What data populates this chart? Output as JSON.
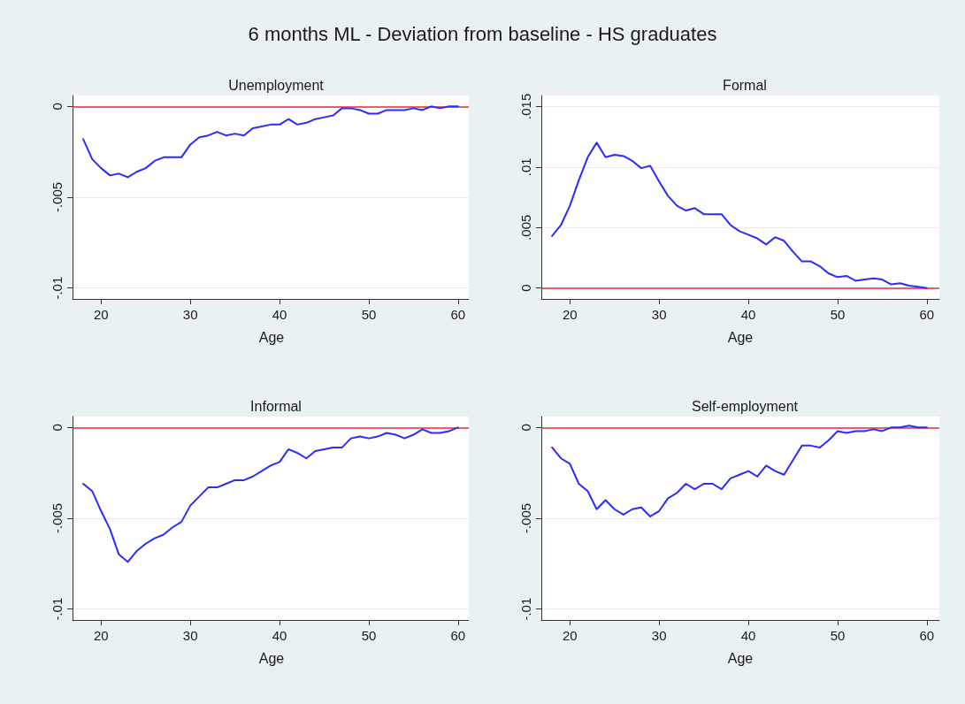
{
  "chart_data": [
    {
      "type": "other",
      "title": "6 months ML - Deviation from baseline - HS graduates"
    },
    {
      "type": "line",
      "title": "Unemployment",
      "xlabel": "Age",
      "x": [
        18,
        19,
        20,
        21,
        22,
        23,
        24,
        25,
        26,
        27,
        28,
        29,
        30,
        31,
        32,
        33,
        34,
        35,
        36,
        37,
        38,
        39,
        40,
        41,
        42,
        43,
        44,
        45,
        46,
        47,
        48,
        49,
        50,
        51,
        52,
        53,
        54,
        55,
        56,
        57,
        58,
        59,
        60
      ],
      "series": [
        {
          "color": "#2b2bff",
          "values": [
            -0.0018,
            -0.0029,
            -0.0034,
            -0.0038,
            -0.0037,
            -0.0039,
            -0.0036,
            -0.0034,
            -0.003,
            -0.0028,
            -0.0028,
            -0.0028,
            -0.0021,
            -0.0017,
            -0.0016,
            -0.0014,
            -0.0016,
            -0.0015,
            -0.0016,
            -0.0012,
            -0.0011,
            -0.001,
            -0.001,
            -0.0007,
            -0.001,
            -0.0009,
            -0.0007,
            -0.0006,
            -0.0005,
            -0.0001,
            -0.0001,
            -0.0002,
            -0.0004,
            -0.0004,
            -0.0002,
            -0.0002,
            -0.0002,
            -0.0001,
            -0.0002,
            0,
            -0.0001,
            0,
            0
          ]
        }
      ],
      "xlim": [
        16.8,
        61.4
      ],
      "xticks": [
        20,
        30,
        40,
        50,
        60
      ],
      "ylim": [
        -0.0106,
        0.0006
      ],
      "yticks": [
        {
          "value": -0.01,
          "label": "-.01"
        },
        {
          "value": -0.005,
          "label": "-.005"
        },
        {
          "value": 0,
          "label": "0"
        }
      ],
      "ref_lines": [
        {
          "axis": "y",
          "value": 0,
          "color": "#e0303a"
        }
      ],
      "grid": "y",
      "marker": "none",
      "line_style": "solid"
    },
    {
      "type": "line",
      "title": "Formal",
      "xlabel": "Age",
      "x": [
        18,
        19,
        20,
        21,
        22,
        23,
        24,
        25,
        26,
        27,
        28,
        29,
        30,
        31,
        32,
        33,
        34,
        35,
        36,
        37,
        38,
        39,
        40,
        41,
        42,
        43,
        44,
        45,
        46,
        47,
        48,
        49,
        50,
        51,
        52,
        53,
        54,
        55,
        56,
        57,
        58,
        59,
        60
      ],
      "series": [
        {
          "color": "#2b2bff",
          "values": [
            0.0043,
            0.0052,
            0.0068,
            0.0089,
            0.0108,
            0.012,
            0.0108,
            0.011,
            0.0109,
            0.0105,
            0.0099,
            0.0101,
            0.0088,
            0.0076,
            0.0068,
            0.0064,
            0.0066,
            0.0061,
            0.0061,
            0.0061,
            0.0052,
            0.0047,
            0.0044,
            0.0041,
            0.0036,
            0.0042,
            0.0039,
            0.003,
            0.0022,
            0.0022,
            0.0018,
            0.0012,
            0.0009,
            0.001,
            0.0006,
            0.0007,
            0.0008,
            0.0007,
            0.0003,
            0.0004,
            0.0002,
            0.0001,
            0
          ]
        }
      ],
      "xlim": [
        16.8,
        61.4
      ],
      "xticks": [
        20,
        30,
        40,
        50,
        60
      ],
      "ylim": [
        -0.0009,
        0.0159
      ],
      "yticks": [
        {
          "value": 0,
          "label": "0"
        },
        {
          "value": 0.005,
          "label": ".005"
        },
        {
          "value": 0.01,
          "label": ".01"
        },
        {
          "value": 0.015,
          "label": ".015"
        }
      ],
      "ref_lines": [
        {
          "axis": "y",
          "value": 0,
          "color": "#e0303a"
        }
      ],
      "grid": "y",
      "marker": "none",
      "line_style": "solid"
    },
    {
      "type": "line",
      "title": "Informal",
      "xlabel": "Age",
      "x": [
        18,
        19,
        20,
        21,
        22,
        23,
        24,
        25,
        26,
        27,
        28,
        29,
        30,
        31,
        32,
        33,
        34,
        35,
        36,
        37,
        38,
        39,
        40,
        41,
        42,
        43,
        44,
        45,
        46,
        47,
        48,
        49,
        50,
        51,
        52,
        53,
        54,
        55,
        56,
        57,
        58,
        59,
        60
      ],
      "series": [
        {
          "color": "#2b2bff",
          "values": [
            -0.0031,
            -0.0035,
            -0.0046,
            -0.0056,
            -0.007,
            -0.0074,
            -0.0068,
            -0.0064,
            -0.0061,
            -0.0059,
            -0.0055,
            -0.0052,
            -0.0043,
            -0.0038,
            -0.0033,
            -0.0033,
            -0.0031,
            -0.0029,
            -0.0029,
            -0.0027,
            -0.0024,
            -0.0021,
            -0.0019,
            -0.0012,
            -0.0014,
            -0.0017,
            -0.0013,
            -0.0012,
            -0.0011,
            -0.0011,
            -0.0006,
            -0.0005,
            -0.0006,
            -0.0005,
            -0.0003,
            -0.0004,
            -0.0006,
            -0.0004,
            -0.0001,
            -0.0003,
            -0.0003,
            -0.0002,
            0
          ]
        }
      ],
      "xlim": [
        16.8,
        61.4
      ],
      "xticks": [
        20,
        30,
        40,
        50,
        60
      ],
      "ylim": [
        -0.0106,
        0.0006
      ],
      "yticks": [
        {
          "value": -0.01,
          "label": "-.01"
        },
        {
          "value": -0.005,
          "label": "-.005"
        },
        {
          "value": 0,
          "label": "0"
        }
      ],
      "ref_lines": [
        {
          "axis": "y",
          "value": 0,
          "color": "#e0303a"
        }
      ],
      "grid": "y",
      "marker": "none",
      "line_style": "solid"
    },
    {
      "type": "line",
      "title": "Self-employment",
      "xlabel": "Age",
      "x": [
        18,
        19,
        20,
        21,
        22,
        23,
        24,
        25,
        26,
        27,
        28,
        29,
        30,
        31,
        32,
        33,
        34,
        35,
        36,
        37,
        38,
        39,
        40,
        41,
        42,
        43,
        44,
        45,
        46,
        47,
        48,
        49,
        50,
        51,
        52,
        53,
        54,
        55,
        56,
        57,
        58,
        59,
        60
      ],
      "series": [
        {
          "color": "#2b2bff",
          "values": [
            -0.0011,
            -0.0017,
            -0.002,
            -0.0031,
            -0.0035,
            -0.0045,
            -0.004,
            -0.0045,
            -0.0048,
            -0.0045,
            -0.0044,
            -0.0049,
            -0.0046,
            -0.0039,
            -0.0036,
            -0.0031,
            -0.0034,
            -0.0031,
            -0.0031,
            -0.0034,
            -0.0028,
            -0.0026,
            -0.0024,
            -0.0027,
            -0.0021,
            -0.0024,
            -0.0026,
            -0.0018,
            -0.001,
            -0.001,
            -0.0011,
            -0.0007,
            -0.0002,
            -0.0003,
            -0.0002,
            -0.0002,
            -0.0001,
            -0.0002,
            0,
            0,
            0.0001,
            0,
            0
          ]
        }
      ],
      "xlim": [
        16.8,
        61.4
      ],
      "xticks": [
        20,
        30,
        40,
        50,
        60
      ],
      "ylim": [
        -0.0106,
        0.0006
      ],
      "yticks": [
        {
          "value": -0.01,
          "label": "-.01"
        },
        {
          "value": -0.005,
          "label": "-.005"
        },
        {
          "value": 0,
          "label": "0"
        }
      ],
      "ref_lines": [
        {
          "axis": "y",
          "value": 0,
          "color": "#e0303a"
        }
      ],
      "grid": "y",
      "marker": "none",
      "line_style": "solid"
    }
  ]
}
